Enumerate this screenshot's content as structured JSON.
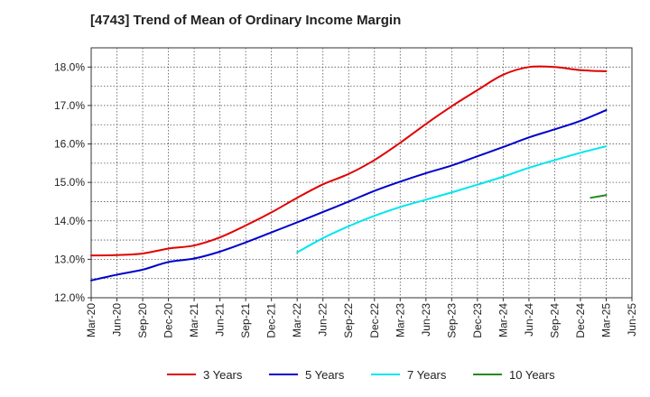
{
  "chart_data": {
    "type": "line",
    "title": "[4743]  Trend of Mean of Ordinary Income Margin",
    "xlabel": "",
    "ylabel": "",
    "x": [
      "Mar-20",
      "Jun-20",
      "Sep-20",
      "Dec-20",
      "Mar-21",
      "Jun-21",
      "Sep-21",
      "Dec-21",
      "Mar-22",
      "Jun-22",
      "Sep-22",
      "Dec-22",
      "Mar-23",
      "Jun-23",
      "Sep-23",
      "Dec-23",
      "Mar-24",
      "Jun-24",
      "Sep-24",
      "Dec-24",
      "Mar-25",
      "Jun-25"
    ],
    "x_tick_labels": [
      "Mar-20",
      "Jun-20",
      "Sep-20",
      "Dec-20",
      "Mar-21",
      "Jun-21",
      "Sep-21",
      "Dec-21",
      "Mar-22",
      "Jun-22",
      "Sep-22",
      "Dec-22",
      "Mar-23",
      "Jun-23",
      "Sep-23",
      "Dec-23",
      "Mar-24",
      "Jun-24",
      "Sep-24",
      "Dec-24",
      "Mar-25",
      "Jun-25"
    ],
    "y_tick_labels": [
      "12.0%",
      "13.0%",
      "14.0%",
      "15.0%",
      "16.0%",
      "17.0%",
      "18.0%"
    ],
    "ylim": [
      12.0,
      18.5
    ],
    "grid": true,
    "legend_position": "bottom",
    "series": [
      {
        "name": "3 Years",
        "color": "#e00000",
        "values": [
          13.1,
          13.11,
          13.15,
          13.28,
          13.36,
          13.57,
          13.88,
          14.22,
          14.6,
          14.95,
          15.22,
          15.58,
          16.03,
          16.52,
          16.98,
          17.4,
          17.8,
          18.0,
          18.0,
          17.92,
          17.89,
          null
        ]
      },
      {
        "name": "5 Years",
        "color": "#0000cc",
        "values": [
          12.45,
          12.6,
          12.73,
          12.93,
          13.02,
          13.2,
          13.44,
          13.7,
          13.96,
          14.23,
          14.5,
          14.78,
          15.02,
          15.24,
          15.44,
          15.68,
          15.92,
          16.17,
          16.38,
          16.6,
          16.88,
          null
        ]
      },
      {
        "name": "7 Years",
        "color": "#00e5ee",
        "values": [
          null,
          null,
          null,
          null,
          null,
          null,
          null,
          null,
          13.18,
          13.55,
          13.86,
          14.13,
          14.36,
          14.55,
          14.74,
          14.94,
          15.15,
          15.38,
          15.58,
          15.77,
          15.94,
          null
        ]
      },
      {
        "name": "10 Years",
        "color": "#228b22",
        "values": [
          null,
          null,
          null,
          null,
          null,
          null,
          null,
          null,
          null,
          null,
          null,
          null,
          null,
          null,
          null,
          null,
          null,
          null,
          null,
          null,
          14.67,
          null
        ],
        "partial_start": {
          "x": "Dec-24",
          "value": 14.6
        }
      }
    ]
  }
}
